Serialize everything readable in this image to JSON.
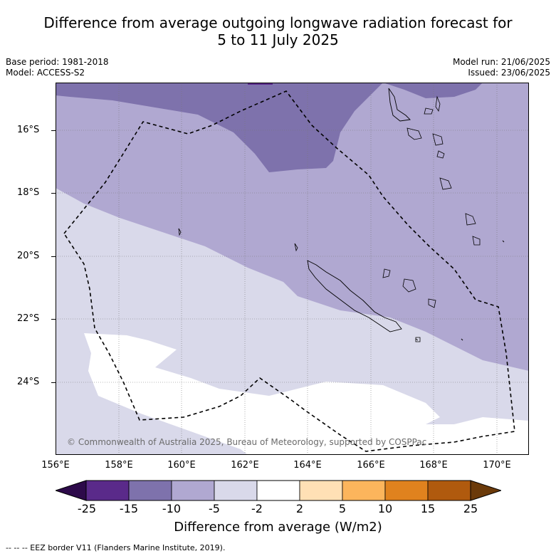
{
  "title_line1": "Difference from average outgoing longwave radiation forecast for",
  "title_line2": "5 to 11 July 2025",
  "meta": {
    "base_period": "Base period: 1981-2018",
    "model": "Model: ACCESS-S2",
    "model_run": "Model run: 21/06/2025",
    "issued": "Issued: 23/06/2025"
  },
  "map": {
    "copyright": "© Commonwealth of Australia 2025, Bureau of Meteorology, supported by COSPPac",
    "lat_labels": [
      "16°S",
      "18°S",
      "20°S",
      "22°S",
      "24°S"
    ],
    "lon_labels": [
      "156°E",
      "158°E",
      "160°E",
      "162°E",
      "164°E",
      "166°E",
      "168°E",
      "170°E"
    ]
  },
  "colorbar": {
    "title": "Difference from average (W/m2)",
    "tick_labels": [
      "-25",
      "-15",
      "-10",
      "-5",
      "-2",
      "2",
      "5",
      "10",
      "15",
      "25"
    ],
    "colors": [
      "#2d0a4a",
      "#5a2a8a",
      "#7e72ac",
      "#b0a8d1",
      "#d9d9ea",
      "#ffffff",
      "#ffe0b5",
      "#fcb55c",
      "#e0821e",
      "#b05a0e",
      "#6b3a0a"
    ]
  },
  "footnote": "--  --  -- EEZ border V11 (Flanders Marine Institute, 2019)."
}
